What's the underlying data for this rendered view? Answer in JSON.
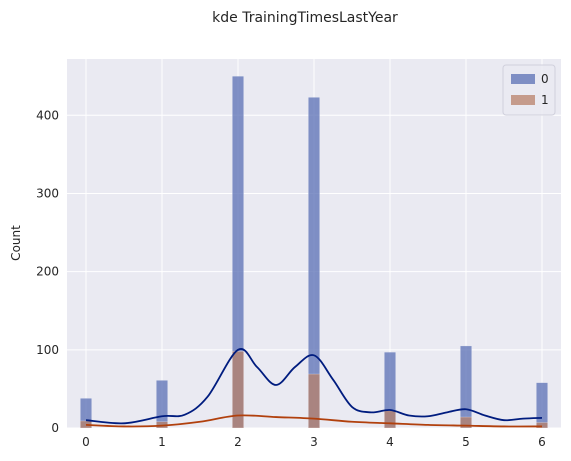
{
  "chart_data": {
    "type": "bar",
    "title": "kde TrainingTimesLastYear",
    "xlabel": "",
    "ylabel": "Count",
    "x": [
      0,
      1,
      2,
      3,
      4,
      5,
      6
    ],
    "x_ticks": [
      "0",
      "1",
      "2",
      "3",
      "4",
      "5",
      "6"
    ],
    "y_ticks": [
      "0",
      "100",
      "200",
      "300",
      "400"
    ],
    "y_tick_values": [
      0,
      100,
      200,
      300,
      400
    ],
    "xlim": [
      -0.25,
      6.25
    ],
    "ylim": [
      0,
      472
    ],
    "bar_width": 0.15,
    "grid": true,
    "legend_position": "top-right",
    "colors": {
      "background": "#eaeaf2",
      "grid": "#ffffff",
      "series_0_fill": "#5a6fb4",
      "series_0_line": "#001c7f",
      "series_1_fill": "#b8806a",
      "series_1_line": "#b1400d"
    },
    "series": [
      {
        "name": "0",
        "values": [
          38,
          61,
          450,
          423,
          97,
          105,
          58
        ]
      },
      {
        "name": "1",
        "values": [
          9,
          8,
          98,
          69,
          22,
          14,
          7
        ]
      }
    ],
    "kde": [
      {
        "series": "0",
        "x": [
          0,
          0.5,
          1,
          1.3,
          1.6,
          2,
          2.25,
          2.5,
          2.75,
          3,
          3.25,
          3.5,
          3.75,
          4,
          4.25,
          4.5,
          4.75,
          5,
          5.25,
          5.5,
          5.75,
          6
        ],
        "y": [
          10,
          6,
          15,
          17,
          40,
          100,
          78,
          55,
          78,
          93,
          62,
          27,
          20,
          23,
          16,
          15,
          20,
          24,
          16,
          10,
          12,
          13
        ]
      },
      {
        "series": "1",
        "x": [
          0,
          0.5,
          1,
          1.5,
          2,
          2.5,
          3,
          3.5,
          4,
          4.5,
          5,
          5.5,
          6
        ],
        "y": [
          4,
          2,
          3,
          8,
          16,
          14,
          12,
          8,
          6,
          4,
          3,
          2,
          2
        ]
      }
    ]
  }
}
